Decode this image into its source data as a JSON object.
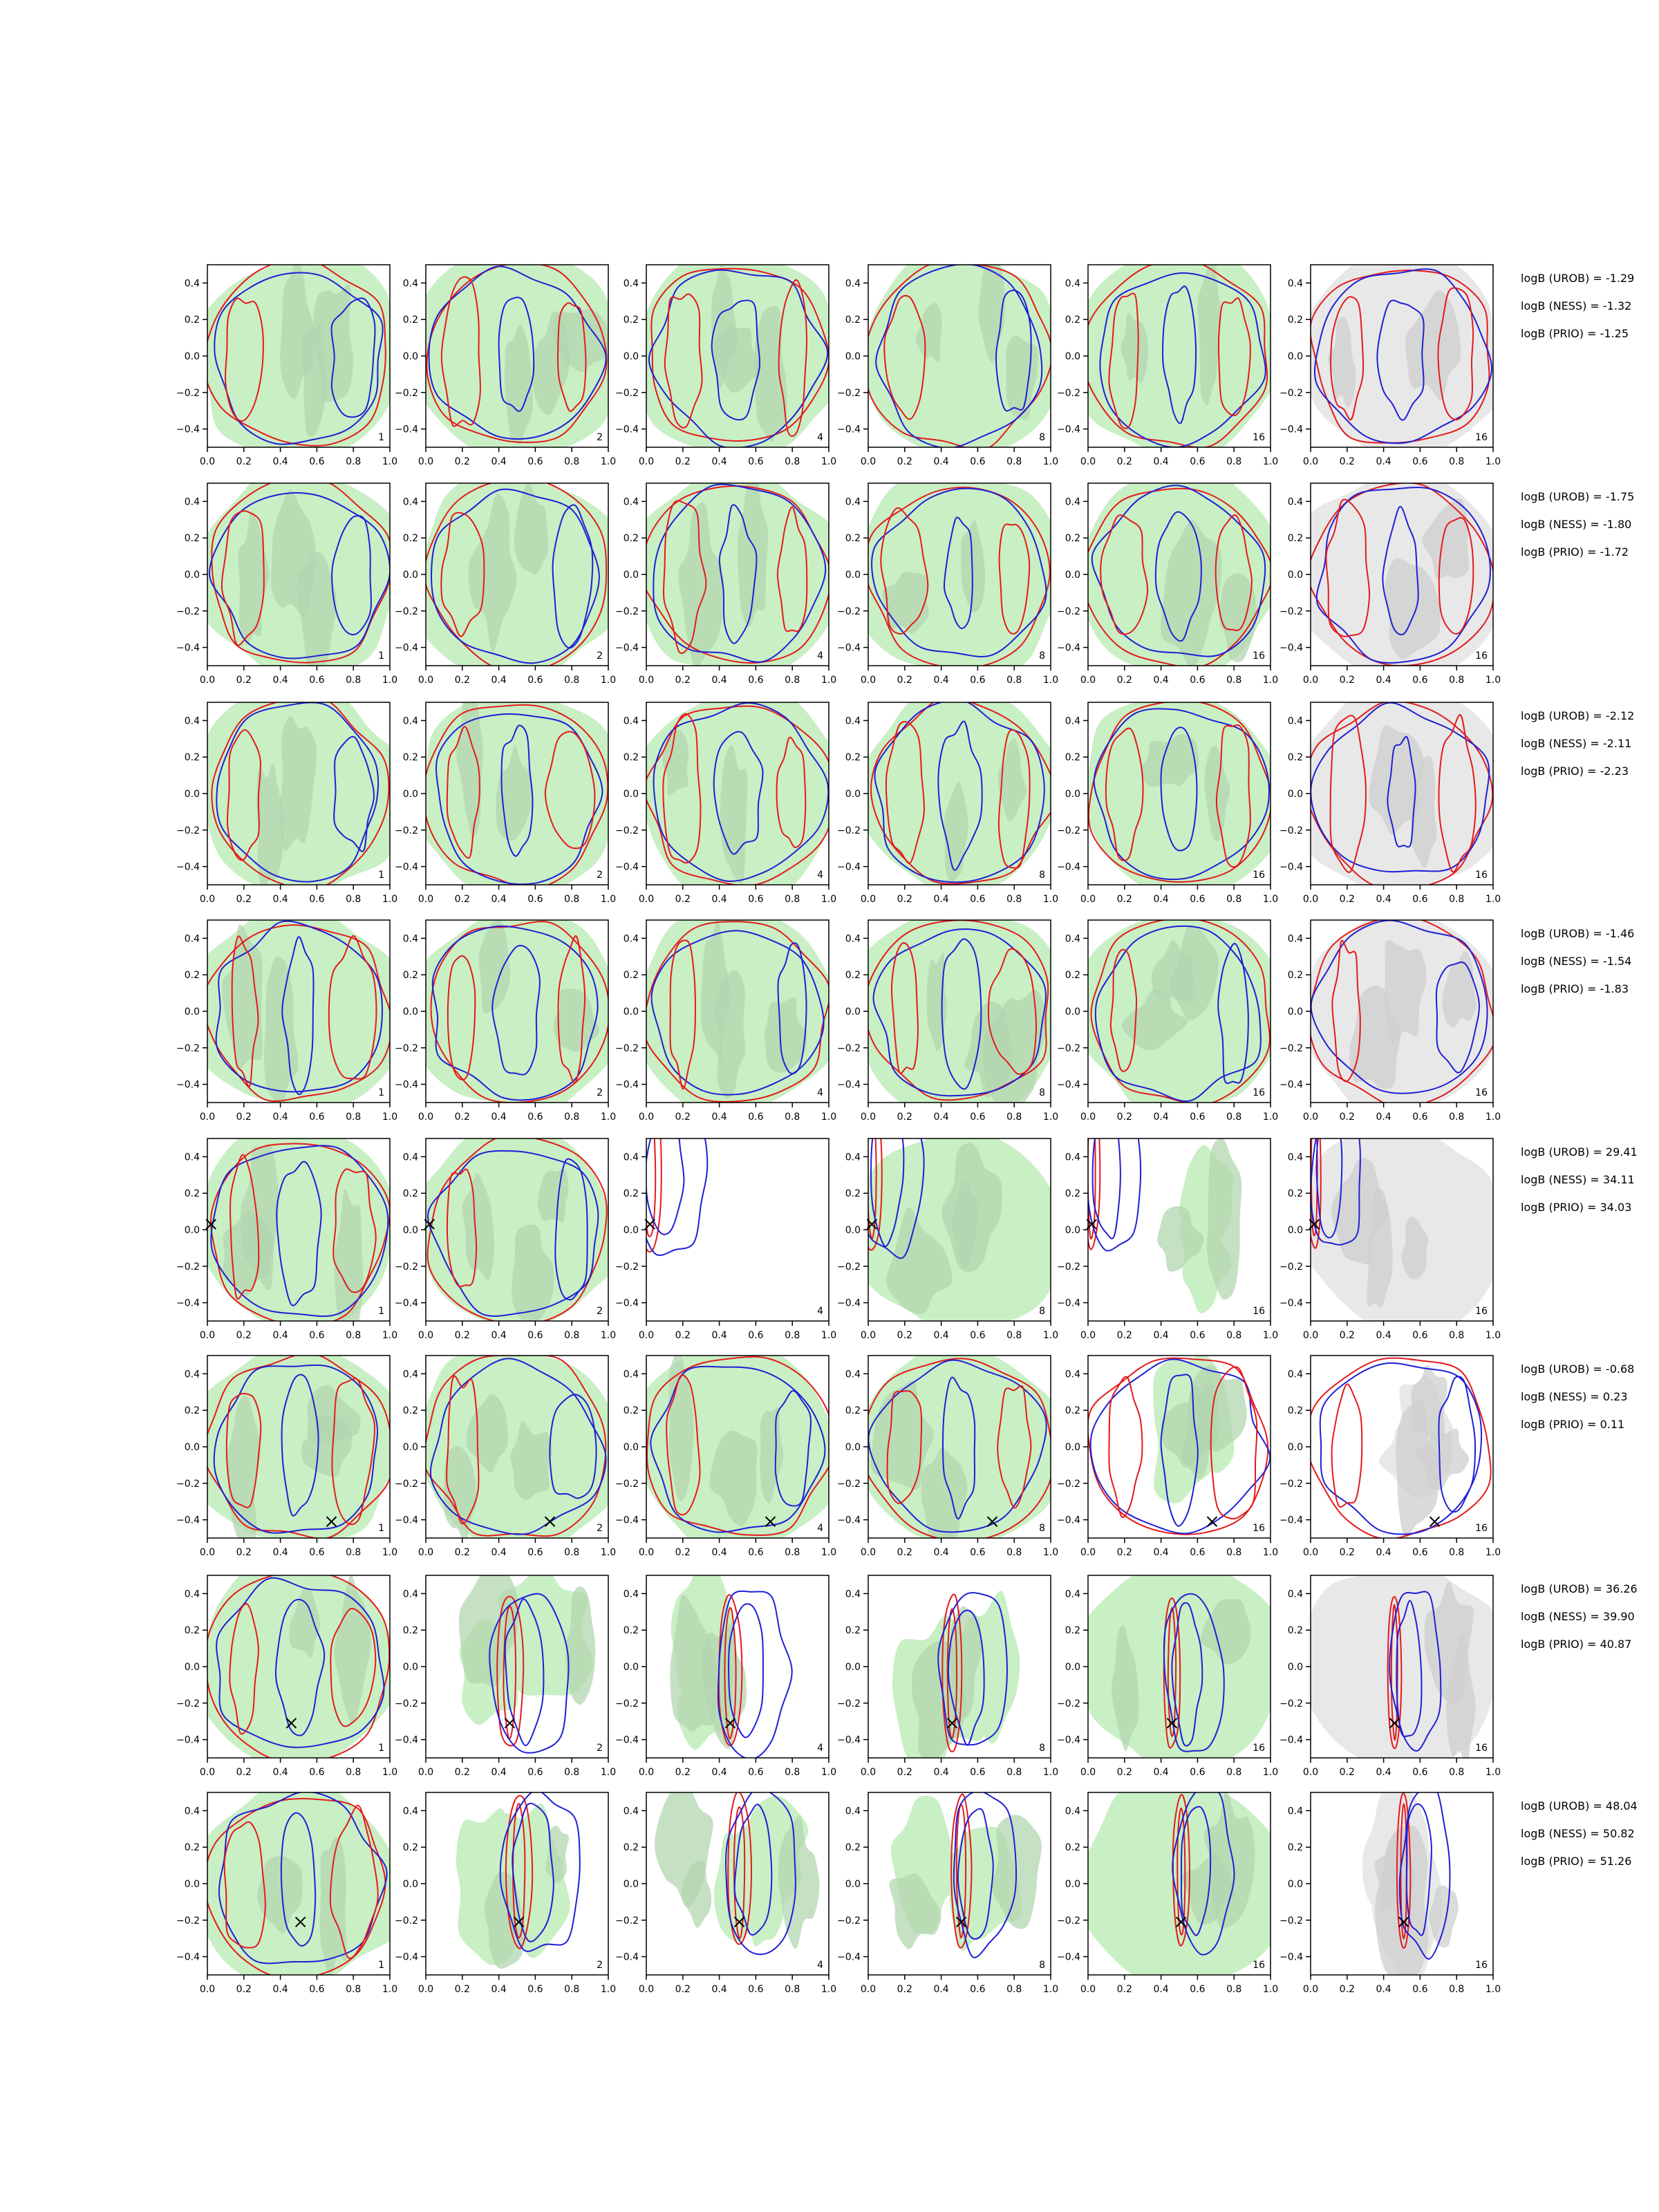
{
  "chart_data": {
    "type": "contour",
    "grid": {
      "rows": 8,
      "cols": 6
    },
    "axes": {
      "xlim": [
        0.0,
        1.0
      ],
      "ylim": [
        -0.5,
        0.5
      ],
      "xticks": [
        0.0,
        0.2,
        0.4,
        0.6,
        0.8,
        1.0
      ],
      "yticks": [
        -0.4,
        -0.2,
        0.0,
        0.2,
        0.4
      ],
      "xtick_labels": [
        "0.0",
        "0.2",
        "0.4",
        "0.6",
        "0.8",
        "1.0"
      ],
      "ytick_labels": [
        "−0.4",
        "−0.2",
        "0.0",
        "0.2",
        "0.4"
      ]
    },
    "panel_labels": [
      "1",
      "2",
      "4",
      "8",
      "16",
      "16"
    ],
    "colors": {
      "red_contour": "#e41a1c",
      "blue_contour": "#1f1fd6",
      "green_fill": "#c9efc4",
      "green_fill_dark": "#b3d6b0",
      "grey_fill": "#e8e8e8",
      "grey_fill_dark": "#cfcfcf",
      "marker": "#000000"
    },
    "rows": [
      {
        "marker": null,
        "annotations": [
          "logB (UROB) = -1.29",
          "logB (NESS) = -1.32",
          "logB (PRIO) = -1.25"
        ]
      },
      {
        "marker": null,
        "annotations": [
          "logB (UROB) = -1.75",
          "logB (NESS) = -1.80",
          "logB (PRIO) = -1.72"
        ]
      },
      {
        "marker": null,
        "annotations": [
          "logB (UROB) = -2.12",
          "logB (NESS) = -2.11",
          "logB (PRIO) = -2.23"
        ]
      },
      {
        "marker": null,
        "annotations": [
          "logB (UROB) = -1.46",
          "logB (NESS) = -1.54",
          "logB (PRIO) = -1.83"
        ]
      },
      {
        "marker": [
          0.02,
          0.03
        ],
        "annotations": [
          "logB (UROB) = 29.41",
          "logB (NESS) = 34.11",
          "logB (PRIO) = 34.03"
        ]
      },
      {
        "marker": [
          0.68,
          -0.41
        ],
        "annotations": [
          "logB (UROB) = -0.68",
          "logB (NESS) = 0.23",
          "logB (PRIO) = 0.11"
        ]
      },
      {
        "marker": [
          0.46,
          -0.31
        ],
        "annotations": [
          "logB (UROB) = 36.26",
          "logB (NESS) = 39.90",
          "logB (PRIO) = 40.87"
        ]
      },
      {
        "marker": [
          0.51,
          -0.21
        ],
        "annotations": [
          "logB (UROB) = 48.04",
          "logB (NESS) = 50.82",
          "logB (PRIO) = 51.26"
        ]
      }
    ]
  }
}
